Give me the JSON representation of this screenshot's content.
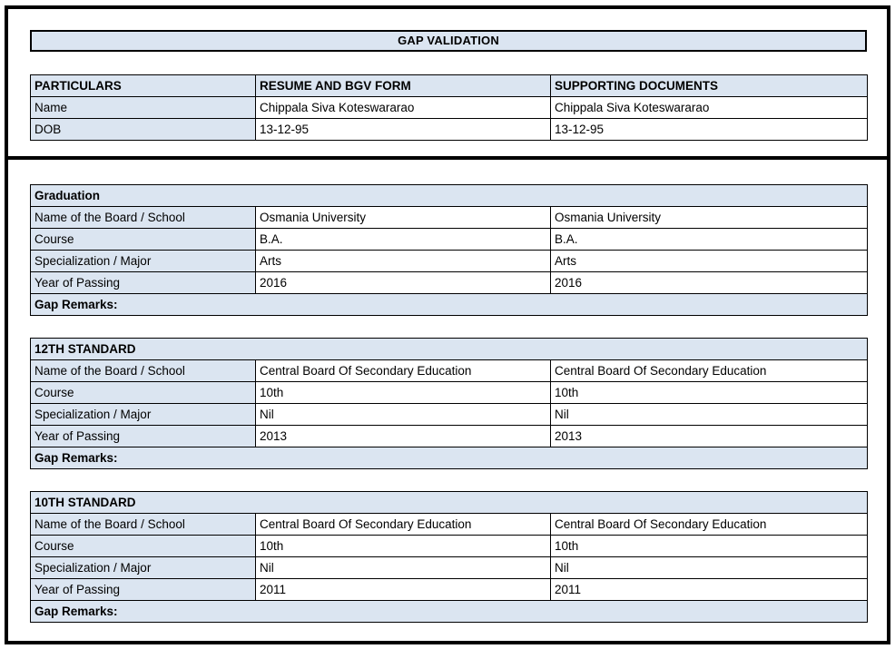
{
  "title": "GAP VALIDATION",
  "columns": {
    "particulars": "PARTICULARS",
    "resume": "RESUME AND BGV FORM",
    "supporting": "SUPPORTING DOCUMENTS"
  },
  "particulars": {
    "rows": [
      {
        "label": "Name",
        "resume": "Chippala Siva Koteswararao",
        "supporting": "Chippala Siva Koteswararao"
      },
      {
        "label": "DOB",
        "resume": "13-12-95",
        "supporting": "13-12-95"
      }
    ]
  },
  "sections": [
    {
      "heading": "Graduation",
      "rows": [
        {
          "label": "Name of the Board / School",
          "resume": "Osmania University",
          "supporting": "Osmania University"
        },
        {
          "label": "Course",
          "resume": "B.A.",
          "supporting": "B.A."
        },
        {
          "label": "Specialization / Major",
          "resume": "Arts",
          "supporting": "Arts"
        },
        {
          "label": "Year of Passing",
          "resume": "2016",
          "supporting": "2016"
        }
      ],
      "gap_remarks_label": "Gap Remarks:"
    },
    {
      "heading": "12TH STANDARD",
      "rows": [
        {
          "label": "Name of the Board / School",
          "resume": "Central Board Of Secondary Education",
          "supporting": "Central Board Of Secondary Education"
        },
        {
          "label": "Course",
          "resume": "10th",
          "supporting": "10th"
        },
        {
          "label": "Specialization / Major",
          "resume": "Nil",
          "supporting": "Nil"
        },
        {
          "label": "Year of Passing",
          "resume": "2013",
          "supporting": "2013"
        }
      ],
      "gap_remarks_label": "Gap Remarks:"
    },
    {
      "heading": "10TH STANDARD",
      "rows": [
        {
          "label": "Name of the Board / School",
          "resume": "Central Board Of Secondary Education",
          "supporting": "Central Board Of Secondary Education"
        },
        {
          "label": "Course",
          "resume": "10th",
          "supporting": "10th"
        },
        {
          "label": "Specialization / Major",
          "resume": "Nil",
          "supporting": "Nil"
        },
        {
          "label": "Year of Passing",
          "resume": "2011",
          "supporting": "2011"
        }
      ],
      "gap_remarks_label": "Gap Remarks:"
    }
  ],
  "colors": {
    "header_fill": "#DBE5F1",
    "border": "#000000",
    "background": "#FFFFFF"
  }
}
